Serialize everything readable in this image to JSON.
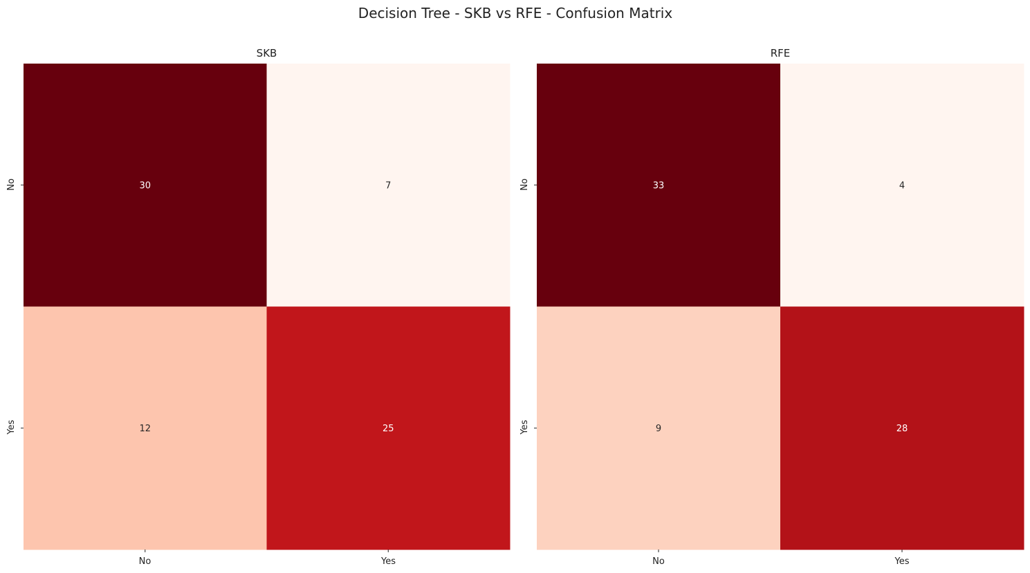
{
  "figure": {
    "title": "Decision Tree - SKB vs RFE - Confusion Matrix"
  },
  "chart_data": [
    {
      "type": "heatmap",
      "title": "SKB",
      "row_labels": [
        "No",
        "Yes"
      ],
      "col_labels": [
        "No",
        "Yes"
      ],
      "values": [
        [
          30,
          7
        ],
        [
          12,
          25
        ]
      ],
      "colormap": "Reds",
      "colorbar": false,
      "annotations": true
    },
    {
      "type": "heatmap",
      "title": "RFE",
      "row_labels": [
        "No",
        "Yes"
      ],
      "col_labels": [
        "No",
        "Yes"
      ],
      "values": [
        [
          33,
          4
        ],
        [
          9,
          28
        ]
      ],
      "colormap": "Reds",
      "colorbar": false,
      "annotations": true
    }
  ]
}
